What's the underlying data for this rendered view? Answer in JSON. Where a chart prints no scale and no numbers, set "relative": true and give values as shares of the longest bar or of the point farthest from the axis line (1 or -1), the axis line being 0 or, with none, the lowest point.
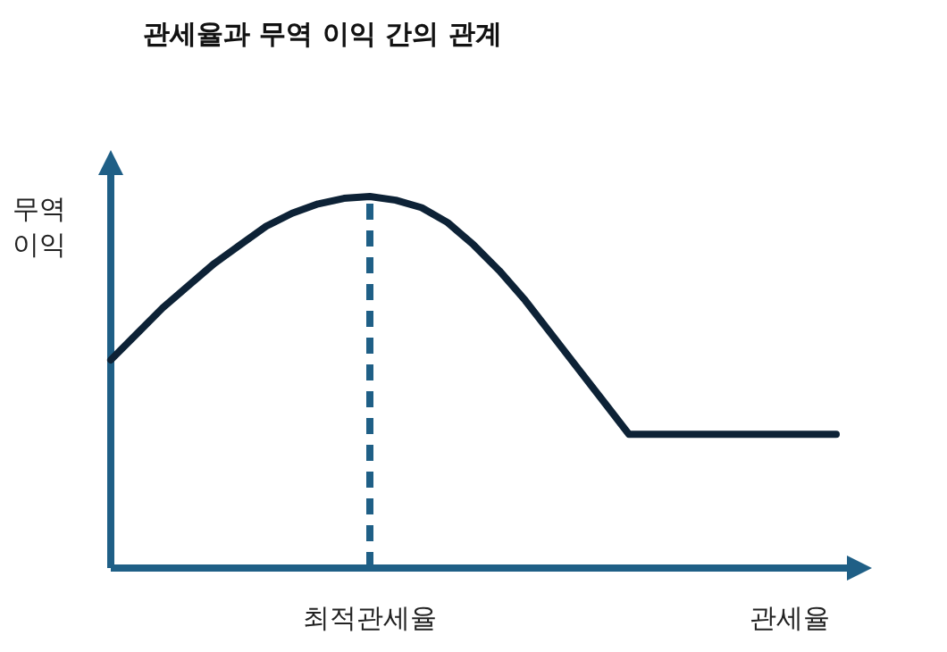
{
  "chart_data": {
    "type": "line",
    "title": "관세율과 무역 이익 간의 관계",
    "xlabel": "관세율",
    "ylabel": "무역 이익",
    "relative": true,
    "categories": [
      null,
      null,
      null,
      null,
      null,
      null,
      null,
      null,
      null,
      null,
      null,
      null,
      null,
      null,
      null,
      null,
      null,
      null,
      null,
      null,
      null,
      null,
      null,
      null,
      null,
      null,
      null,
      null,
      null
    ],
    "series": [
      {
        "color": "#0d2236",
        "values": [
          0.56,
          0.63,
          0.7,
          0.76,
          0.82,
          0.87,
          0.92,
          0.955,
          0.98,
          0.995,
          1,
          0.99,
          0.97,
          0.93,
          0.87,
          0.8,
          0.72,
          0.63,
          0.54,
          0.45,
          0.36,
          0.36,
          0.36,
          0.36,
          0.36,
          0.36,
          0.36,
          0.36,
          0.36
        ]
      }
    ],
    "ref_lines": [
      {
        "axis": "x",
        "label": "최적관세율",
        "color": "#1f5f86",
        "line_style": "dashed"
      }
    ],
    "marker": "none",
    "line_style": "solid"
  }
}
